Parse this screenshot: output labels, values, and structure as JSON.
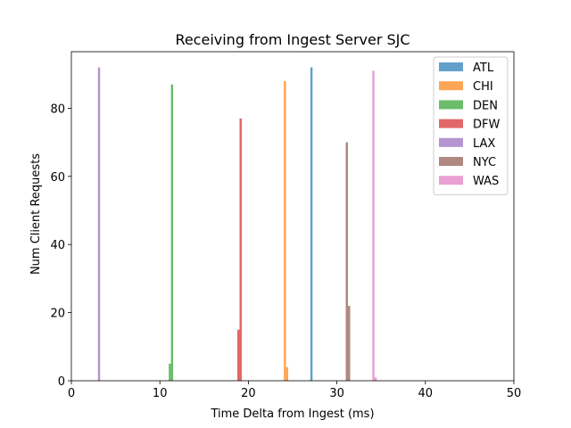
{
  "chart_data": {
    "type": "bar",
    "title": "Receiving from Ingest Server SJC",
    "xlabel": "Time Delta from Ingest (ms)",
    "ylabel": "Num Client Requests",
    "xlim": [
      0,
      50
    ],
    "ylim": [
      0,
      96.6
    ],
    "xticks": [
      0,
      10,
      20,
      30,
      40,
      50
    ],
    "yticks": [
      0,
      20,
      40,
      60,
      80
    ],
    "grid": false,
    "legend_position": "top-right",
    "bar_opacity": 0.7,
    "series": [
      {
        "name": "ATL",
        "color": "#1f77b4",
        "bars": [
          {
            "x0": 27.0,
            "x1": 27.25,
            "y": 92
          }
        ]
      },
      {
        "name": "CHI",
        "color": "#ff7f0e",
        "bars": [
          {
            "x0": 24.0,
            "x1": 24.25,
            "y": 88
          },
          {
            "x0": 24.25,
            "x1": 24.5,
            "y": 4
          }
        ]
      },
      {
        "name": "DEN",
        "color": "#2ca02c",
        "bars": [
          {
            "x0": 11.0,
            "x1": 11.25,
            "y": 5
          },
          {
            "x0": 11.25,
            "x1": 11.5,
            "y": 87
          }
        ]
      },
      {
        "name": "DFW",
        "color": "#d62728",
        "bars": [
          {
            "x0": 18.75,
            "x1": 19.0,
            "y": 15
          },
          {
            "x0": 19.0,
            "x1": 19.25,
            "y": 77
          }
        ]
      },
      {
        "name": "LAX",
        "color": "#9467bd",
        "bars": [
          {
            "x0": 3.0,
            "x1": 3.25,
            "y": 92
          }
        ]
      },
      {
        "name": "NYC",
        "color": "#8c564b",
        "bars": [
          {
            "x0": 31.0,
            "x1": 31.25,
            "y": 70
          },
          {
            "x0": 31.25,
            "x1": 31.5,
            "y": 22
          }
        ]
      },
      {
        "name": "WAS",
        "color": "#e377c2",
        "bars": [
          {
            "x0": 34.0,
            "x1": 34.25,
            "y": 91
          },
          {
            "x0": 34.25,
            "x1": 34.5,
            "y": 1
          }
        ]
      }
    ]
  }
}
